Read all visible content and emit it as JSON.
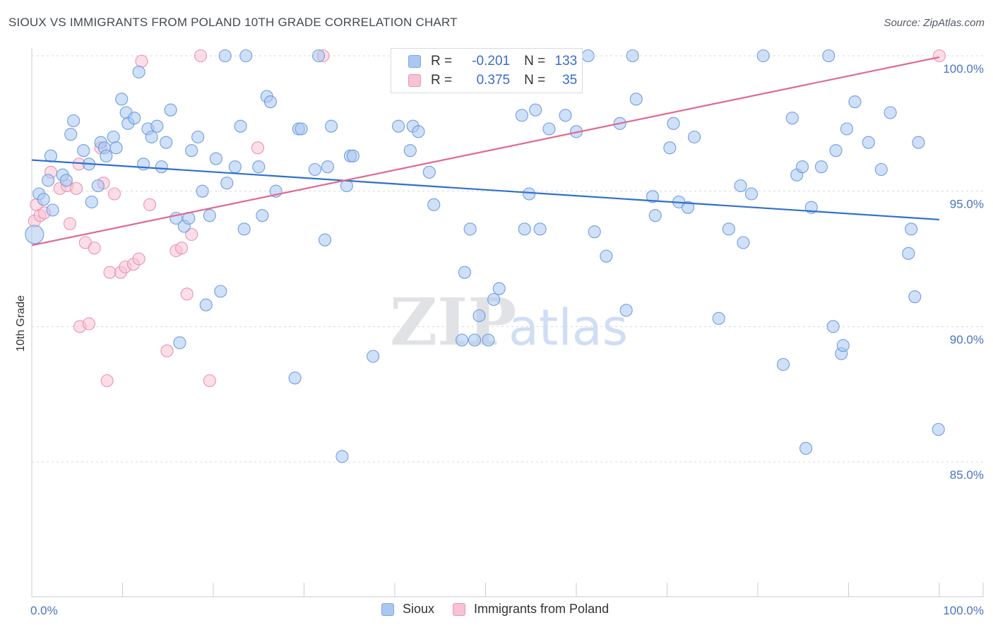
{
  "title": "SIOUX VS IMMIGRANTS FROM POLAND 10TH GRADE CORRELATION CHART",
  "source": "Source: ZipAtlas.com",
  "watermark": {
    "zip": "ZIP",
    "atlas": "atlas"
  },
  "legend": {
    "r_label": "R =",
    "n_label": "N =",
    "rows": [
      {
        "r": "-0.201",
        "n": "133",
        "color": "#a9c7f0",
        "border": "#7fa6e0"
      },
      {
        "r": "0.375",
        "n": "35",
        "color": "#f7c2d3",
        "border": "#ec93b1"
      }
    ]
  },
  "bottom_legend": [
    {
      "label": "Sioux",
      "color": "#a9c7f0",
      "border": "#7fa6e0"
    },
    {
      "label": "Immigrants from Poland",
      "color": "#f7c2d3",
      "border": "#ec93b1"
    }
  ],
  "chart_data": {
    "type": "scatter",
    "title": "SIOUX VS IMMIGRANTS FROM POLAND 10TH GRADE CORRELATION CHART",
    "xlabel": "",
    "ylabel": "10th Grade",
    "x_tick_labels": [
      "0.0%",
      "100.0%"
    ],
    "y_tick_labels": [
      "100.0%",
      "95.0%",
      "90.0%",
      "85.0%"
    ],
    "y_ticks": [
      100,
      95,
      90,
      85
    ],
    "xlim": [
      0,
      100
    ],
    "ylim": [
      80.5,
      100.4
    ],
    "grid": "horizontal dashed",
    "series": [
      {
        "name": "Sioux",
        "color": "#6f9ee0",
        "fill": "#a9c7f0",
        "trend": {
          "x": [
            0,
            100
          ],
          "y": [
            96.15,
            93.95
          ],
          "color": "#2f6fd0"
        },
        "points": [
          [
            0.3,
            93.4
          ],
          [
            0.8,
            94.9
          ],
          [
            1.3,
            94.7
          ],
          [
            1.8,
            95.4
          ],
          [
            2.1,
            96.3
          ],
          [
            2.3,
            94.3
          ],
          [
            3.4,
            95.6
          ],
          [
            3.8,
            95.4
          ],
          [
            4.3,
            97.1
          ],
          [
            4.6,
            97.6
          ],
          [
            5.7,
            96.5
          ],
          [
            6.3,
            96.0
          ],
          [
            6.6,
            94.6
          ],
          [
            7.3,
            95.2
          ],
          [
            7.6,
            96.8
          ],
          [
            8.0,
            96.6
          ],
          [
            8.2,
            96.3
          ],
          [
            9.0,
            97.0
          ],
          [
            9.3,
            96.6
          ],
          [
            9.9,
            98.4
          ],
          [
            10.4,
            97.9
          ],
          [
            10.6,
            97.5
          ],
          [
            11.3,
            97.7
          ],
          [
            11.8,
            99.4
          ],
          [
            12.3,
            96.0
          ],
          [
            12.8,
            97.3
          ],
          [
            13.2,
            97.0
          ],
          [
            13.8,
            97.4
          ],
          [
            14.3,
            95.9
          ],
          [
            14.8,
            96.8
          ],
          [
            15.3,
            98.0
          ],
          [
            15.9,
            94.0
          ],
          [
            16.3,
            89.4
          ],
          [
            16.8,
            93.7
          ],
          [
            17.3,
            94.0
          ],
          [
            17.6,
            96.5
          ],
          [
            18.3,
            97.0
          ],
          [
            18.8,
            95.0
          ],
          [
            19.2,
            90.8
          ],
          [
            19.6,
            94.1
          ],
          [
            20.3,
            96.2
          ],
          [
            20.8,
            91.3
          ],
          [
            21.3,
            100.0
          ],
          [
            21.5,
            95.3
          ],
          [
            22.4,
            95.9
          ],
          [
            23.0,
            97.4
          ],
          [
            23.4,
            93.6
          ],
          [
            23.6,
            100.0
          ],
          [
            25.0,
            95.9
          ],
          [
            25.4,
            94.1
          ],
          [
            25.9,
            98.5
          ],
          [
            26.3,
            98.3
          ],
          [
            26.9,
            95.0
          ],
          [
            29.0,
            88.1
          ],
          [
            29.4,
            97.3
          ],
          [
            29.7,
            97.3
          ],
          [
            31.2,
            95.8
          ],
          [
            31.6,
            100.0
          ],
          [
            32.3,
            93.2
          ],
          [
            32.6,
            95.9
          ],
          [
            33.0,
            97.4
          ],
          [
            34.2,
            85.2
          ],
          [
            34.7,
            95.2
          ],
          [
            35.1,
            96.3
          ],
          [
            35.4,
            96.3
          ],
          [
            37.6,
            88.9
          ],
          [
            40.4,
            97.4
          ],
          [
            41.7,
            96.5
          ],
          [
            42.0,
            97.4
          ],
          [
            42.6,
            97.2
          ],
          [
            43.8,
            95.7
          ],
          [
            44.3,
            94.5
          ],
          [
            45.9,
            100.0
          ],
          [
            46.3,
            100.0
          ],
          [
            47.3,
            100.0
          ],
          [
            47.4,
            89.5
          ],
          [
            47.7,
            92.0
          ],
          [
            48.3,
            93.6
          ],
          [
            48.8,
            89.5
          ],
          [
            49.3,
            90.4
          ],
          [
            50.3,
            89.5
          ],
          [
            50.9,
            91.0
          ],
          [
            51.5,
            91.4
          ],
          [
            54.0,
            97.8
          ],
          [
            54.3,
            93.6
          ],
          [
            54.8,
            94.9
          ],
          [
            55.5,
            98.0
          ],
          [
            56.0,
            93.6
          ],
          [
            57.0,
            97.3
          ],
          [
            58.8,
            97.8
          ],
          [
            60.0,
            97.2
          ],
          [
            61.3,
            100.0
          ],
          [
            62.0,
            93.5
          ],
          [
            63.3,
            92.6
          ],
          [
            64.8,
            97.5
          ],
          [
            65.5,
            90.6
          ],
          [
            66.2,
            100.0
          ],
          [
            66.6,
            98.4
          ],
          [
            68.4,
            94.8
          ],
          [
            68.7,
            94.1
          ],
          [
            70.3,
            96.6
          ],
          [
            70.7,
            97.5
          ],
          [
            71.3,
            94.6
          ],
          [
            72.3,
            94.4
          ],
          [
            73.0,
            97.0
          ],
          [
            75.7,
            90.3
          ],
          [
            76.8,
            93.6
          ],
          [
            78.1,
            95.2
          ],
          [
            78.4,
            93.1
          ],
          [
            79.3,
            94.9
          ],
          [
            80.6,
            100.0
          ],
          [
            82.8,
            88.6
          ],
          [
            83.8,
            97.7
          ],
          [
            84.3,
            95.6
          ],
          [
            84.9,
            95.9
          ],
          [
            85.3,
            85.5
          ],
          [
            85.9,
            94.4
          ],
          [
            87.0,
            95.9
          ],
          [
            87.8,
            100.0
          ],
          [
            88.3,
            90.0
          ],
          [
            88.6,
            96.5
          ],
          [
            89.2,
            89.0
          ],
          [
            89.4,
            89.3
          ],
          [
            89.8,
            97.3
          ],
          [
            90.7,
            98.3
          ],
          [
            92.2,
            96.8
          ],
          [
            93.6,
            95.8
          ],
          [
            94.6,
            97.9
          ],
          [
            96.6,
            92.7
          ],
          [
            96.9,
            93.6
          ],
          [
            97.3,
            91.1
          ],
          [
            97.7,
            96.8
          ],
          [
            99.9,
            86.2
          ]
        ]
      },
      {
        "name": "Immigrants from Poland",
        "color": "#ec93b1",
        "fill": "#f7c2d3",
        "trend": {
          "x": [
            0,
            100
          ],
          "y": [
            93.0,
            99.95
          ],
          "color": "#e0698f"
        },
        "points": [
          [
            0.3,
            93.9
          ],
          [
            0.5,
            94.5
          ],
          [
            0.9,
            94.1
          ],
          [
            1.4,
            94.2
          ],
          [
            2.1,
            95.7
          ],
          [
            3.1,
            95.1
          ],
          [
            3.9,
            95.2
          ],
          [
            4.2,
            93.8
          ],
          [
            4.9,
            95.1
          ],
          [
            5.2,
            96.0
          ],
          [
            5.3,
            90.0
          ],
          [
            5.9,
            93.1
          ],
          [
            6.3,
            90.1
          ],
          [
            6.9,
            92.9
          ],
          [
            7.6,
            96.6
          ],
          [
            7.9,
            95.3
          ],
          [
            8.3,
            88.0
          ],
          [
            8.6,
            92.0
          ],
          [
            9.1,
            94.9
          ],
          [
            9.8,
            92.0
          ],
          [
            10.3,
            92.2
          ],
          [
            11.2,
            92.3
          ],
          [
            11.8,
            92.5
          ],
          [
            12.1,
            99.8
          ],
          [
            13.0,
            94.5
          ],
          [
            14.9,
            89.1
          ],
          [
            15.9,
            92.8
          ],
          [
            16.5,
            92.9
          ],
          [
            17.1,
            91.2
          ],
          [
            17.6,
            93.4
          ],
          [
            18.6,
            100.0
          ],
          [
            19.6,
            88.0
          ],
          [
            24.9,
            96.6
          ],
          [
            32.1,
            100.0
          ],
          [
            100.0,
            100.0
          ]
        ]
      }
    ]
  }
}
